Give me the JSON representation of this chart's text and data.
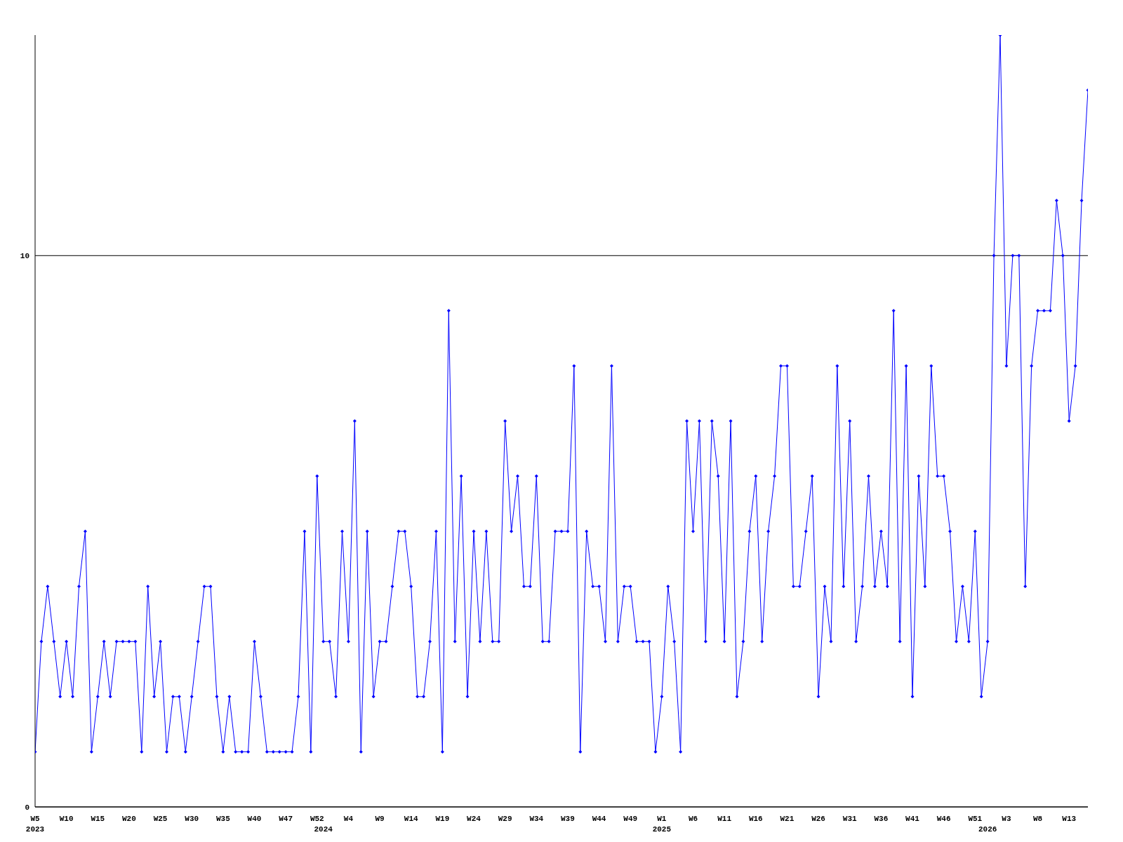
{
  "chart_data": {
    "type": "line",
    "categories": [
      "W5\n2023",
      null,
      null,
      null,
      null,
      "W10",
      null,
      null,
      null,
      null,
      "W15",
      null,
      null,
      null,
      null,
      "W20",
      null,
      null,
      null,
      null,
      "W25",
      null,
      null,
      null,
      null,
      "W30",
      null,
      null,
      null,
      null,
      "W35",
      null,
      null,
      null,
      null,
      "W40",
      null,
      null,
      null,
      null,
      "W47",
      null,
      null,
      null,
      null,
      "W52",
      "\n2024",
      null,
      null,
      null,
      "W4",
      null,
      null,
      null,
      null,
      "W9",
      null,
      null,
      null,
      null,
      "W14",
      null,
      null,
      null,
      null,
      "W19",
      null,
      null,
      null,
      null,
      "W24",
      null,
      null,
      null,
      null,
      "W29",
      null,
      null,
      null,
      null,
      "W34",
      null,
      null,
      null,
      null,
      "W39",
      null,
      null,
      null,
      null,
      "W44",
      null,
      null,
      null,
      null,
      "W49",
      null,
      null,
      null,
      null,
      "W1\n2025",
      null,
      null,
      null,
      null,
      "W6",
      null,
      null,
      null,
      null,
      "W11",
      null,
      null,
      null,
      null,
      "W16",
      null,
      null,
      null,
      null,
      "W21",
      null,
      null,
      null,
      null,
      "W26",
      null,
      null,
      null,
      null,
      "W31",
      null,
      null,
      null,
      null,
      "W36",
      null,
      null,
      null,
      null,
      "W41",
      null,
      null,
      null,
      null,
      "W46",
      null,
      null,
      null,
      null,
      "W51",
      null,
      "\n2026",
      null,
      null,
      "W3",
      null,
      null,
      null,
      null,
      "W8",
      null,
      null,
      null,
      null,
      "W13",
      null,
      null,
      null
    ],
    "series": [
      {
        "color": "#0000ff",
        "values": [
          1,
          3,
          4,
          3,
          2,
          3,
          2,
          4,
          5,
          1,
          2,
          3,
          2,
          3,
          3,
          3,
          3,
          1,
          4,
          2,
          3,
          1,
          2,
          2,
          1,
          2,
          3,
          4,
          4,
          2,
          1,
          2,
          1,
          1,
          1,
          3,
          2,
          1,
          1,
          1,
          1,
          1,
          2,
          5,
          1,
          6,
          3,
          3,
          2,
          5,
          3,
          7,
          1,
          5,
          2,
          3,
          3,
          4,
          5,
          5,
          4,
          2,
          2,
          3,
          5,
          1,
          9,
          3,
          6,
          2,
          5,
          3,
          5,
          3,
          3,
          7,
          5,
          6,
          4,
          4,
          6,
          3,
          3,
          5,
          5,
          5,
          8,
          1,
          5,
          4,
          4,
          3,
          8,
          3,
          4,
          4,
          3,
          3,
          3,
          1,
          2,
          4,
          3,
          1,
          7,
          5,
          7,
          3,
          7,
          6,
          3,
          7,
          2,
          3,
          5,
          6,
          3,
          5,
          6,
          8,
          8,
          4,
          4,
          5,
          6,
          2,
          4,
          3,
          8,
          4,
          7,
          3,
          4,
          6,
          4,
          5,
          4,
          9,
          3,
          8,
          2,
          6,
          4,
          8,
          6,
          6,
          5,
          3,
          4,
          3,
          5,
          2,
          3,
          10,
          14,
          8,
          10,
          10,
          4,
          8,
          9,
          9,
          9,
          11,
          10,
          7,
          8,
          11,
          13
        ]
      }
    ],
    "ylim": [
      0,
      14
    ],
    "yticks": [
      0,
      10
    ],
    "grid": "y",
    "marker": "diamond",
    "line_style": "solid"
  }
}
